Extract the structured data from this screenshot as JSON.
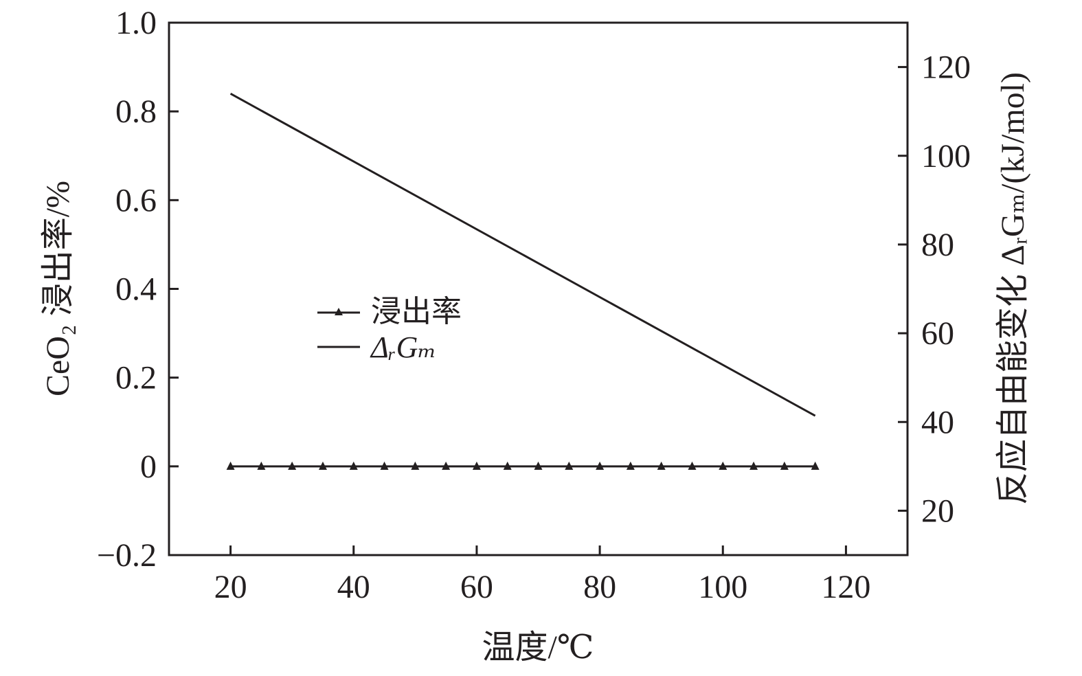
{
  "chart_data": {
    "type": "line",
    "xlabel": "温度/℃",
    "ylabel_left": "CeO₂ 浸出率/%",
    "ylabel_right": "反应自由能变化 ΔᵣGₘ/(kJ/mol)",
    "xlim": [
      10,
      130
    ],
    "ylim_left": [
      -0.2,
      1.0
    ],
    "ylim_right": [
      10,
      130
    ],
    "x_ticks": [
      "20",
      "40",
      "60",
      "80",
      "100",
      "120"
    ],
    "y_left_ticks": [
      "1.0",
      "0.8",
      "0.6",
      "0.4",
      "0.2",
      "0",
      "−0.2"
    ],
    "y_right_ticks": [
      "120",
      "100",
      "80",
      "60",
      "40",
      "20"
    ],
    "legend_position": "center-left",
    "series": [
      {
        "name": "浸出率",
        "axis": "left",
        "marker": "triangle",
        "x": [
          20,
          25,
          30,
          35,
          40,
          45,
          50,
          55,
          60,
          65,
          70,
          75,
          80,
          85,
          90,
          95,
          100,
          105,
          110,
          115
        ],
        "values": [
          0,
          0,
          0,
          0,
          0,
          0,
          0,
          0,
          0,
          0,
          0,
          0,
          0,
          0,
          0,
          0,
          0,
          0,
          0,
          0
        ]
      },
      {
        "name": "ΔᵣGₘ",
        "axis": "right",
        "marker": "none",
        "x": [
          20,
          115
        ],
        "values": [
          114.0,
          41.4
        ]
      }
    ]
  }
}
